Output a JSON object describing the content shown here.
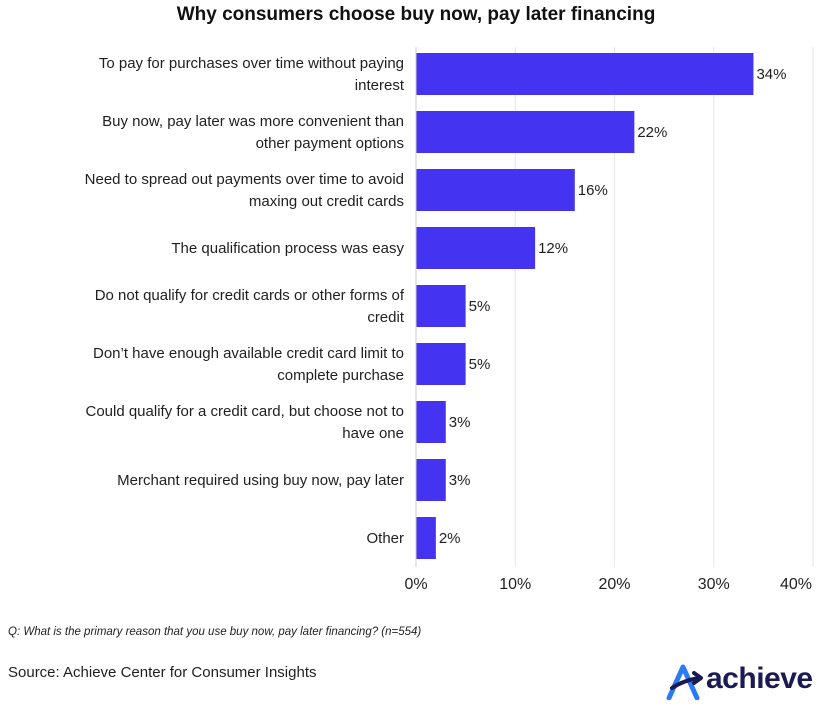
{
  "title": "Why consumers choose buy now, pay later financing",
  "chart_data": {
    "type": "bar",
    "orientation": "horizontal",
    "categories": [
      [
        "To pay for purchases over time without paying",
        "interest"
      ],
      [
        "Buy now, pay later was more convenient than",
        "other payment options"
      ],
      [
        "Need to spread out payments over time to avoid",
        "maxing out credit cards"
      ],
      [
        "The qualification process was easy"
      ],
      [
        "Do not qualify for credit cards or other forms of",
        "credit"
      ],
      [
        "Don’t have enough available credit card limit to",
        "complete purchase"
      ],
      [
        "Could qualify for a credit card, but choose not to",
        "have one"
      ],
      [
        "Merchant required using buy now, pay later"
      ],
      [
        "Other"
      ]
    ],
    "values": [
      34,
      22,
      16,
      12,
      5,
      5,
      3,
      3,
      2
    ],
    "value_labels": [
      "34%",
      "22%",
      "16%",
      "12%",
      "5%",
      "5%",
      "3%",
      "3%",
      "2%"
    ],
    "xlim": [
      0,
      40
    ],
    "x_ticks": [
      0,
      10,
      20,
      30,
      40
    ],
    "x_tick_labels": [
      "0%",
      "10%",
      "20%",
      "30%",
      "40%"
    ],
    "bar_color": "#4433f0",
    "grid": true,
    "grid_color": "#e6e6e6"
  },
  "footnote": "Q: What is the primary reason that you use buy now, pay later financing? (n=554)",
  "source": "Source: Achieve Center for Consumer Insights",
  "logo": {
    "text": "achieve",
    "icon": "achieve-logo-icon",
    "color": "#1b1a55",
    "accent": "#2b7bf5"
  }
}
